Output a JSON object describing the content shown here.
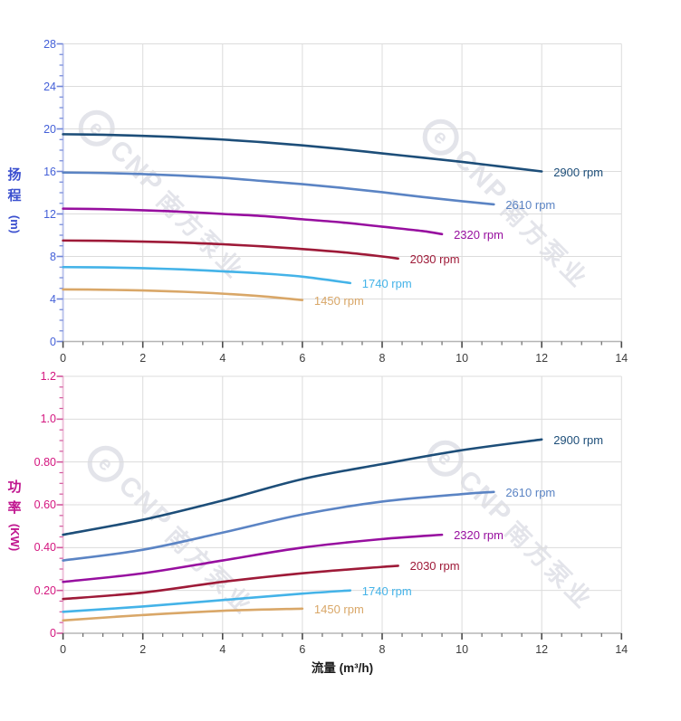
{
  "watermark": {
    "logo_char": "e",
    "brand": "CNP",
    "cn_text": "南方泵业",
    "color": "#e3e4ea"
  },
  "chart_data": [
    {
      "type": "line",
      "title": "",
      "xlabel": "",
      "ylabel": "扬程",
      "ylabel_unit": "(m)",
      "xlim": [
        0,
        14
      ],
      "ylim": [
        0,
        28
      ],
      "x_major_step": 2,
      "x_minor_step": 0.5,
      "y_major_step": 4,
      "y_minor_step": 1,
      "grid": true,
      "legend_position": "end-of-line",
      "x_tick_labels": [
        "0",
        "2",
        "4",
        "6",
        "8",
        "10",
        "12",
        "14"
      ],
      "y_tick_labels": [
        "0",
        "4",
        "8",
        "12",
        "16",
        "20",
        "24",
        "28"
      ],
      "title_color": "#3b50cf",
      "tick_label_color": "#4460d8",
      "x_tick_label_color": "#3c3c3c",
      "y_axis_line_color": "#bcc4ec",
      "y_tick_color": "#6e84d8",
      "x_axis_line_color": "#b5b5b5",
      "x_tick_color": "#4a4a4a",
      "grid_color": "#dcdcdc",
      "series": [
        {
          "label": "2900 rpm",
          "color": "#1d4e79",
          "points": [
            [
              0,
              19.5
            ],
            [
              1,
              19.45
            ],
            [
              2,
              19.35
            ],
            [
              3,
              19.2
            ],
            [
              4,
              19.0
            ],
            [
              5,
              18.75
            ],
            [
              6,
              18.45
            ],
            [
              7,
              18.1
            ],
            [
              8,
              17.7
            ],
            [
              9,
              17.3
            ],
            [
              10,
              16.9
            ],
            [
              11,
              16.45
            ],
            [
              12,
              16.0
            ]
          ]
        },
        {
          "label": "2610 rpm",
          "color": "#5b84c4",
          "points": [
            [
              0,
              15.9
            ],
            [
              1,
              15.85
            ],
            [
              2,
              15.75
            ],
            [
              3,
              15.6
            ],
            [
              4,
              15.4
            ],
            [
              5,
              15.1
            ],
            [
              6,
              14.8
            ],
            [
              7,
              14.45
            ],
            [
              8,
              14.05
            ],
            [
              9,
              13.6
            ],
            [
              10,
              13.2
            ],
            [
              10.8,
              12.9
            ]
          ]
        },
        {
          "label": "2320 rpm",
          "color": "#970f9f",
          "points": [
            [
              0,
              12.5
            ],
            [
              1,
              12.45
            ],
            [
              2,
              12.35
            ],
            [
              3,
              12.2
            ],
            [
              4,
              12.0
            ],
            [
              5,
              11.8
            ],
            [
              6,
              11.5
            ],
            [
              7,
              11.2
            ],
            [
              8,
              10.8
            ],
            [
              9,
              10.4
            ],
            [
              9.5,
              10.1
            ]
          ]
        },
        {
          "label": "2030 rpm",
          "color": "#9e1a38",
          "points": [
            [
              0,
              9.5
            ],
            [
              1,
              9.47
            ],
            [
              2,
              9.4
            ],
            [
              3,
              9.3
            ],
            [
              4,
              9.15
            ],
            [
              5,
              8.95
            ],
            [
              6,
              8.7
            ],
            [
              7,
              8.4
            ],
            [
              8,
              8.0
            ],
            [
              8.4,
              7.8
            ]
          ]
        },
        {
          "label": "1740 rpm",
          "color": "#44b3e8",
          "points": [
            [
              0,
              7.0
            ],
            [
              1,
              6.97
            ],
            [
              2,
              6.9
            ],
            [
              3,
              6.78
            ],
            [
              4,
              6.6
            ],
            [
              5,
              6.4
            ],
            [
              6,
              6.1
            ],
            [
              7.2,
              5.5
            ]
          ]
        },
        {
          "label": "1450 rpm",
          "color": "#d9a768",
          "points": [
            [
              0,
              4.9
            ],
            [
              1,
              4.87
            ],
            [
              2,
              4.8
            ],
            [
              3,
              4.68
            ],
            [
              4,
              4.5
            ],
            [
              5,
              4.25
            ],
            [
              6,
              3.9
            ]
          ]
        }
      ]
    },
    {
      "type": "line",
      "title": "",
      "xlabel": "流量 (m³/h)",
      "ylabel": "功率",
      "ylabel_unit": "(KW)",
      "xlim": [
        0,
        14
      ],
      "ylim": [
        0,
        1.2
      ],
      "x_major_step": 2,
      "x_minor_step": 0.5,
      "y_major_step": 0.2,
      "y_minor_step": 0.05,
      "grid": true,
      "legend_position": "end-of-line",
      "x_tick_labels": [
        "0",
        "2",
        "4",
        "6",
        "8",
        "10",
        "12",
        "14"
      ],
      "y_tick_labels": [
        "0",
        "0.20",
        "0.40",
        "0.60",
        "0.80",
        "1.0",
        "1.2"
      ],
      "title_color": "#c0158f",
      "tick_label_color": "#d4157f",
      "x_tick_label_color": "#3c3c3c",
      "y_axis_line_color": "#eec2da",
      "y_tick_color": "#d2569c",
      "x_axis_line_color": "#b5b5b5",
      "x_tick_color": "#4a4a4a",
      "grid_color": "#dcdcdc",
      "series": [
        {
          "label": "2900 rpm",
          "color": "#1d4e79",
          "points": [
            [
              0,
              0.46
            ],
            [
              2,
              0.53
            ],
            [
              4,
              0.62
            ],
            [
              6,
              0.72
            ],
            [
              8,
              0.79
            ],
            [
              10,
              0.855
            ],
            [
              12,
              0.905
            ]
          ]
        },
        {
          "label": "2610 rpm",
          "color": "#5b84c4",
          "points": [
            [
              0,
              0.34
            ],
            [
              2,
              0.39
            ],
            [
              4,
              0.47
            ],
            [
              6,
              0.555
            ],
            [
              8,
              0.615
            ],
            [
              10,
              0.65
            ],
            [
              10.8,
              0.66
            ]
          ]
        },
        {
          "label": "2320 rpm",
          "color": "#970f9f",
          "points": [
            [
              0,
              0.24
            ],
            [
              2,
              0.28
            ],
            [
              4,
              0.34
            ],
            [
              6,
              0.4
            ],
            [
              8,
              0.44
            ],
            [
              9.5,
              0.46
            ]
          ]
        },
        {
          "label": "2030 rpm",
          "color": "#9e1a38",
          "points": [
            [
              0,
              0.16
            ],
            [
              2,
              0.19
            ],
            [
              4,
              0.24
            ],
            [
              6,
              0.28
            ],
            [
              8,
              0.31
            ],
            [
              8.4,
              0.315
            ]
          ]
        },
        {
          "label": "1740 rpm",
          "color": "#44b3e8",
          "points": [
            [
              0,
              0.1
            ],
            [
              2,
              0.125
            ],
            [
              4,
              0.155
            ],
            [
              6,
              0.185
            ],
            [
              7.2,
              0.2
            ]
          ]
        },
        {
          "label": "1450 rpm",
          "color": "#d9a768",
          "points": [
            [
              0,
              0.06
            ],
            [
              2,
              0.085
            ],
            [
              4,
              0.105
            ],
            [
              6,
              0.115
            ]
          ]
        }
      ]
    }
  ]
}
